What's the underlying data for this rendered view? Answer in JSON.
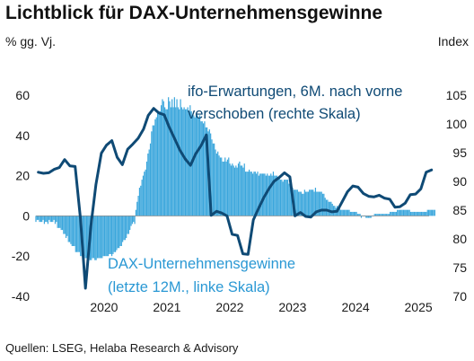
{
  "header": {
    "title": "Lichtblick für DAX-Unternehmensgewinne",
    "left_unit": "% gg. Vj.",
    "right_unit": "Index"
  },
  "source": "Quellen: LSEG, Helaba Research & Advisory",
  "colors": {
    "bars": "#3aa6dc",
    "line": "#0f4a75",
    "bars_label": "#2a98d4",
    "line_label": "#0f4a75",
    "zero_line": "#7a7a7a"
  },
  "chart_data": {
    "type": "bar+line",
    "x_range": [
      "2019-06",
      "2025-09"
    ],
    "x_ticks": [
      "2020",
      "2021",
      "2022",
      "2023",
      "2024",
      "2025"
    ],
    "y_left": {
      "ticks": [
        "60",
        "40",
        "20",
        "0",
        "-20",
        "-40"
      ],
      "ylim": [
        -40,
        65
      ]
    },
    "y_right": {
      "ticks": [
        "105",
        "100",
        "95",
        "90",
        "85",
        "80",
        "75",
        "70"
      ],
      "ylim": [
        70,
        106
      ]
    },
    "annotations": {
      "line_label_1": "ifo-Erwartungen, 6M. nach vorne",
      "line_label_2": "verschoben (rechte Skala)",
      "bars_label_1": "DAX-Unternehmensgewinne",
      "bars_label_2": "(letzte 12M., linke Skala)"
    },
    "series": [
      {
        "name": "DAX-Unternehmensgewinne",
        "axis": "left",
        "kind": "bar",
        "start": "2019-06-01",
        "freq": "weekly",
        "values": [
          -3,
          -2,
          -2,
          -3,
          -3,
          -3,
          -2,
          -4,
          -3,
          -3,
          -4,
          -2,
          -3,
          -3,
          -3,
          -2,
          -4,
          -3,
          -6,
          -6,
          -6,
          -7,
          -7,
          -9,
          -9,
          -11,
          -10,
          -13,
          -13,
          -14,
          -15,
          -15,
          -15,
          -18,
          -18,
          -18,
          -18,
          -20,
          -20,
          -20,
          -20,
          -21,
          -21,
          -21,
          -22,
          -22,
          -22,
          -21,
          -21,
          -22,
          -22,
          -21,
          -21,
          -21,
          -21,
          -21,
          -20,
          -20,
          -20,
          -20,
          -20,
          -19,
          -19,
          -20,
          -19,
          -18,
          -18,
          -17,
          -16,
          -16,
          -15,
          -15,
          -13,
          -12,
          -12,
          -11,
          -9,
          -9,
          -7,
          -5,
          -4,
          -3,
          -4,
          3,
          7,
          10,
          14,
          15,
          18,
          20,
          22,
          23,
          27,
          31,
          33,
          36,
          42,
          45,
          45,
          48,
          49,
          51,
          52,
          52,
          55,
          58,
          57,
          54,
          53,
          53,
          59,
          57,
          54,
          58,
          54,
          59,
          54,
          58,
          54,
          53,
          58,
          54,
          53,
          54,
          53,
          53,
          54,
          52,
          55,
          52,
          50,
          50,
          49,
          51,
          50,
          49,
          50,
          47,
          47,
          46,
          47,
          44,
          44,
          42,
          43,
          41,
          38,
          36,
          36,
          33,
          31,
          32,
          30,
          29,
          29,
          27,
          27,
          29,
          27,
          28,
          29,
          26,
          25,
          26,
          25,
          24,
          25,
          24,
          26,
          27,
          25,
          25,
          24,
          26,
          22,
          22,
          22,
          23,
          22,
          22,
          21,
          22,
          22,
          21,
          22,
          20,
          21,
          21,
          21,
          21,
          21,
          20,
          21,
          20,
          20,
          21,
          20,
          22,
          20,
          20,
          20,
          19,
          20,
          18,
          18,
          17,
          18,
          18,
          18,
          18,
          16,
          16,
          15,
          14,
          13,
          13,
          13,
          13,
          12,
          12,
          12,
          11,
          11,
          13,
          12,
          12,
          12,
          13,
          13,
          13,
          13,
          12,
          14,
          12,
          12,
          12,
          12,
          12,
          11,
          11,
          9,
          8,
          8,
          7,
          7,
          7,
          6,
          5,
          5,
          4,
          5,
          4,
          4,
          3,
          3,
          3,
          3,
          3,
          3,
          3,
          3,
          2,
          2,
          2,
          2,
          2,
          2,
          1,
          1,
          1,
          -1,
          0,
          0,
          0,
          -1,
          -1,
          -1,
          -1,
          -1,
          0,
          0,
          1,
          1,
          1,
          1,
          1,
          1,
          1,
          1,
          1,
          1,
          1,
          1,
          1,
          2,
          2,
          2,
          2,
          2,
          2,
          3,
          3,
          3,
          3,
          3,
          3,
          3,
          3,
          3,
          3,
          3,
          2,
          2,
          2,
          2,
          2,
          2,
          2,
          2,
          2,
          2,
          2,
          2,
          2,
          2,
          3,
          3,
          3,
          3,
          3,
          3,
          3
        ]
      },
      {
        "name": "ifo-Erwartungen, 6M. nach vorne verschoben",
        "axis": "right",
        "kind": "line",
        "x": [
          "2019-06",
          "2019-07",
          "2019-08",
          "2019-09",
          "2019-10",
          "2019-11",
          "2019-12",
          "2020-01",
          "2020-02",
          "2020-03",
          "2020-04",
          "2020-05",
          "2020-06",
          "2020-07",
          "2020-08",
          "2020-09",
          "2020-10",
          "2020-11",
          "2020-12",
          "2021-01",
          "2021-02",
          "2021-03",
          "2021-04",
          "2021-05",
          "2021-06",
          "2021-07",
          "2021-08",
          "2021-09",
          "2021-10",
          "2021-11",
          "2021-12",
          "2022-01",
          "2022-02",
          "2022-03",
          "2022-04",
          "2022-05",
          "2022-06",
          "2022-07",
          "2022-08",
          "2022-09",
          "2022-10",
          "2022-11",
          "2022-12",
          "2023-01",
          "2023-02",
          "2023-03",
          "2023-04",
          "2023-05",
          "2023-06",
          "2023-07",
          "2023-08",
          "2023-09",
          "2023-10",
          "2023-11",
          "2023-12",
          "2024-01",
          "2024-02",
          "2024-03",
          "2024-04",
          "2024-05",
          "2024-06",
          "2024-07",
          "2024-08",
          "2024-09",
          "2024-10",
          "2024-11",
          "2024-12",
          "2025-01",
          "2025-02",
          "2025-03",
          "2025-04",
          "2025-05",
          "2025-06",
          "2025-07",
          "2025-08",
          "2025-09"
        ],
        "values": [
          91.6,
          91.4,
          91.5,
          92.1,
          92.4,
          93.8,
          92.7,
          92.6,
          83.4,
          71.4,
          82.2,
          89.5,
          94.9,
          96.3,
          97.1,
          94.2,
          92.9,
          95.6,
          96.5,
          97.5,
          99.1,
          101.5,
          102.7,
          101.9,
          101.6,
          99.4,
          97.4,
          95.4,
          93.9,
          92.8,
          94.8,
          96.2,
          98.1,
          84.1,
          84.8,
          84.5,
          84.0,
          80.8,
          80.6,
          77.4,
          77.3,
          83.3,
          85.3,
          87.2,
          88.8,
          90.0,
          90.7,
          91.5,
          90.8,
          84.0,
          84.6,
          83.9,
          83.8,
          84.7,
          85.0,
          85.0,
          84.7,
          84.8,
          86.5,
          88.2,
          89.2,
          89.0,
          87.9,
          87.4,
          87.3,
          87.6,
          87.1,
          86.9,
          85.5,
          85.6,
          86.2,
          87.7,
          87.8,
          88.7,
          91.6,
          92.0
        ]
      }
    ]
  }
}
